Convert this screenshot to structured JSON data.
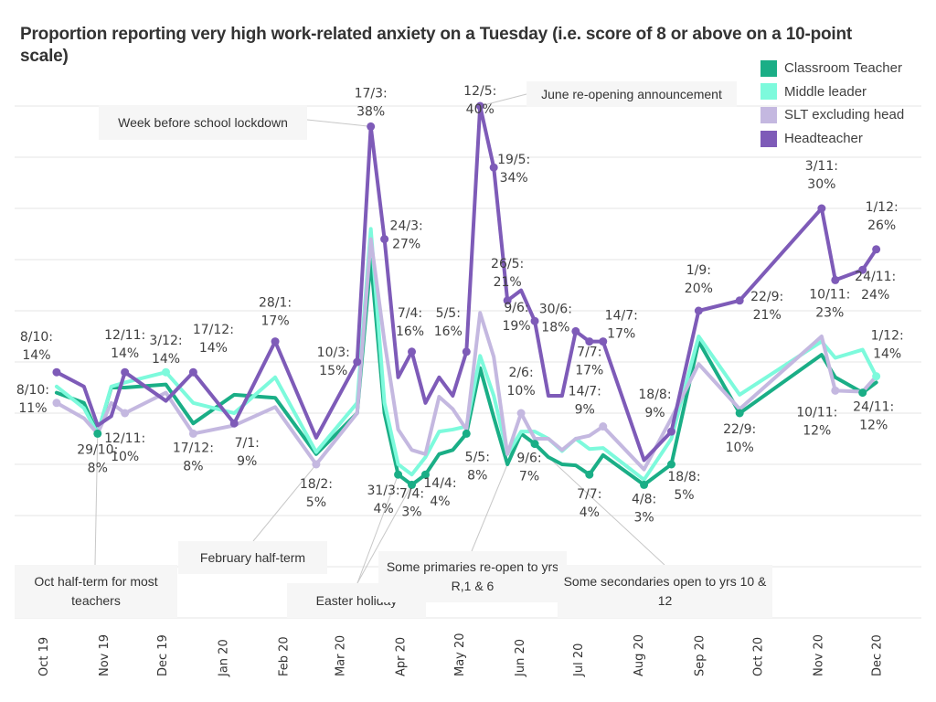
{
  "chart_data": {
    "type": "line",
    "title": "Proportion reporting very high work-related anxiety on a Tuesday (i.e. score of 8 or above on a 10-point scale)",
    "xlabel": "",
    "ylabel": "",
    "ylim": [
      -10,
      40
    ],
    "y_unit": "%",
    "grid": true,
    "legend_position": "top-right",
    "x_ticks": [
      "Oct 19",
      "Nov 19",
      "Dec 19",
      "Jan 20",
      "Feb 20",
      "Mar 20",
      "Apr 20",
      "May 20",
      "Jun 20",
      "Jul 20",
      "Aug 20",
      "Sep 20",
      "Oct 20",
      "Nov 20",
      "Dec 20"
    ],
    "x": [
      "2019-10-08",
      "2019-10-22",
      "2019-10-29",
      "2019-11-05",
      "2019-11-12",
      "2019-12-03",
      "2019-12-17",
      "2020-01-07",
      "2020-01-28",
      "2020-02-18",
      "2020-03-10",
      "2020-03-17",
      "2020-03-24",
      "2020-03-31",
      "2020-04-07",
      "2020-04-14",
      "2020-04-21",
      "2020-04-28",
      "2020-05-05",
      "2020-05-12",
      "2020-05-19",
      "2020-05-26",
      "2020-06-02",
      "2020-06-09",
      "2020-06-16",
      "2020-06-23",
      "2020-06-30",
      "2020-07-07",
      "2020-07-14",
      "2020-08-04",
      "2020-08-18",
      "2020-09-01",
      "2020-09-22",
      "2020-11-03",
      "2020-11-10",
      "2020-11-24",
      "2020-12-01"
    ],
    "series": [
      {
        "name": "Classroom Teacher",
        "color": "#1aae86",
        "values": [
          12,
          11,
          8,
          12.5,
          12.5,
          12.8,
          9,
          11.8,
          11.5,
          6,
          10,
          25,
          10,
          4,
          3,
          4,
          6,
          6.4,
          8,
          14.4,
          9.6,
          5,
          8,
          7,
          5.7,
          5,
          4.9,
          4,
          5.9,
          3,
          5,
          17,
          10,
          15.7,
          13.5,
          12,
          13
        ]
      },
      {
        "name": "Middle leader",
        "color": "#7dfadc",
        "values": [
          12.6,
          10.5,
          8,
          12.6,
          13,
          14,
          11,
          10,
          13.5,
          6.2,
          11,
          28,
          11,
          5,
          4,
          5.7,
          8.2,
          8.4,
          8.7,
          15.6,
          11.7,
          6,
          8.2,
          8.2,
          7.5,
          6.3,
          7.5,
          6.5,
          6.6,
          3.5,
          7.5,
          17.5,
          11.8,
          17,
          15.4,
          16.2,
          13.6
        ]
      },
      {
        "name": "SLT excluding head",
        "color": "#c4b8e0",
        "values": [
          11,
          9.5,
          8,
          11,
          10,
          12,
          8,
          8.8,
          10.6,
          5,
          10,
          27,
          17,
          8.4,
          6.4,
          6,
          11.6,
          10.4,
          8.4,
          19.8,
          15.5,
          6,
          10,
          7.5,
          7.5,
          6.4,
          7.5,
          7.8,
          8.7,
          4.5,
          9.5,
          14.8,
          10.4,
          17.5,
          12.2,
          12.1,
          13.6
        ]
      },
      {
        "name": "Headteacher",
        "color": "#7e5bb8",
        "values": [
          14,
          12.6,
          8.8,
          9.7,
          14,
          11.2,
          14,
          9,
          17,
          7.6,
          15,
          38,
          27,
          13.5,
          16,
          11,
          13.5,
          11.7,
          16,
          40,
          34,
          21,
          22,
          19,
          11.7,
          11.7,
          18,
          17,
          17,
          5.4,
          8.2,
          20,
          21,
          30,
          23,
          24,
          26
        ]
      }
    ],
    "point_labels": [
      {
        "text": [
          "8/10:",
          "14%"
        ],
        "series": "Headteacher",
        "date": "2019-10-08",
        "pos": "above-left"
      },
      {
        "text": [
          "8/10:",
          "11%"
        ],
        "series": "SLT excluding head",
        "date": "2019-10-08",
        "pos": "left"
      },
      {
        "text": [
          "29/10:",
          "8%"
        ],
        "series": "Classroom Teacher",
        "date": "2019-10-29",
        "pos": "below"
      },
      {
        "text": [
          "12/11:",
          "14%"
        ],
        "series": "Headteacher",
        "date": "2019-11-12",
        "pos": "above"
      },
      {
        "text": [
          "12/11:",
          "10%"
        ],
        "series": "SLT excluding head",
        "date": "2019-11-12",
        "pos": "below"
      },
      {
        "text": [
          "3/12:",
          "14%"
        ],
        "series": "Middle leader",
        "date": "2019-12-03",
        "pos": "above"
      },
      {
        "text": [
          "17/12:",
          "14%"
        ],
        "series": "Headteacher",
        "date": "2019-12-17",
        "pos": "above"
      },
      {
        "text": [
          "17/12:",
          "8%"
        ],
        "series": "SLT excluding head",
        "date": "2019-12-17",
        "pos": "below"
      },
      {
        "text": [
          "7/1:",
          "9%"
        ],
        "series": "Headteacher",
        "date": "2020-01-07",
        "pos": "below"
      },
      {
        "text": [
          "28/1:",
          "17%"
        ],
        "series": "Headteacher",
        "date": "2020-01-28",
        "pos": "above"
      },
      {
        "text": [
          "18/2:",
          "5%"
        ],
        "series": "SLT excluding head",
        "date": "2020-02-18",
        "pos": "below"
      },
      {
        "text": [
          "10/3:",
          "15%"
        ],
        "series": "Headteacher",
        "date": "2020-03-10",
        "pos": "left"
      },
      {
        "text": [
          "17/3:",
          "38%"
        ],
        "series": "Headteacher",
        "date": "2020-03-17",
        "pos": "above"
      },
      {
        "text": [
          "24/3:",
          "27%"
        ],
        "series": "Headteacher",
        "date": "2020-03-24",
        "pos": "right"
      },
      {
        "text": [
          "31/3:",
          "4%"
        ],
        "series": "Classroom Teacher",
        "date": "2020-03-31",
        "pos": "below"
      },
      {
        "text": [
          "7/4:",
          "16%"
        ],
        "series": "Headteacher",
        "date": "2020-04-07",
        "pos": "above"
      },
      {
        "text": [
          "7/4:",
          "3%"
        ],
        "series": "Classroom Teacher",
        "date": "2020-04-07",
        "pos": "below"
      },
      {
        "text": [
          "14/4:",
          "4%"
        ],
        "series": "Classroom Teacher",
        "date": "2020-04-14",
        "pos": "below"
      },
      {
        "text": [
          "5/5:",
          "16%"
        ],
        "series": "Headteacher",
        "date": "2020-05-05",
        "pos": "above"
      },
      {
        "text": [
          "5/5:",
          "8%"
        ],
        "series": "Classroom Teacher",
        "date": "2020-05-05",
        "pos": "below"
      },
      {
        "text": [
          "12/5:",
          "40%"
        ],
        "series": "Headteacher",
        "date": "2020-05-12",
        "pos": "left"
      },
      {
        "text": [
          "19/5:",
          "34%"
        ],
        "series": "Headteacher",
        "date": "2020-05-19",
        "pos": "right"
      },
      {
        "text": [
          "26/5:",
          "21%"
        ],
        "series": "Headteacher",
        "date": "2020-05-26",
        "pos": "above"
      },
      {
        "text": [
          "9/6:",
          "19%"
        ],
        "series": "Headteacher",
        "date": "2020-06-09",
        "pos": "left"
      },
      {
        "text": [
          "2/6:",
          "10%"
        ],
        "series": "SLT excluding head",
        "date": "2020-06-02",
        "pos": "above"
      },
      {
        "text": [
          "9/6:",
          "7%"
        ],
        "series": "Classroom Teacher",
        "date": "2020-06-09",
        "pos": "below"
      },
      {
        "text": [
          "30/6:",
          "18%"
        ],
        "series": "Headteacher",
        "date": "2020-06-30",
        "pos": "above"
      },
      {
        "text": [
          "7/7:",
          "17%"
        ],
        "series": "Headteacher",
        "date": "2020-07-07",
        "pos": "below"
      },
      {
        "text": [
          "14/7:",
          "17%"
        ],
        "series": "Headteacher",
        "date": "2020-07-14",
        "pos": "above"
      },
      {
        "text": [
          "14/7:",
          "9%"
        ],
        "series": "SLT excluding head",
        "date": "2020-07-14",
        "pos": "above"
      },
      {
        "text": [
          "7/7:",
          "4%"
        ],
        "series": "Classroom Teacher",
        "date": "2020-07-07",
        "pos": "below"
      },
      {
        "text": [
          "4/8:",
          "3%"
        ],
        "series": "Classroom Teacher",
        "date": "2020-08-04",
        "pos": "below"
      },
      {
        "text": [
          "18/8:",
          "9%"
        ],
        "series": "Headteacher",
        "date": "2020-08-18",
        "pos": "above"
      },
      {
        "text": [
          "18/8:",
          "5%"
        ],
        "series": "Classroom Teacher",
        "date": "2020-08-18",
        "pos": "below"
      },
      {
        "text": [
          "1/9:",
          "20%"
        ],
        "series": "Headteacher",
        "date": "2020-09-01",
        "pos": "above"
      },
      {
        "text": [
          "22/9:",
          "21%"
        ],
        "series": "Headteacher",
        "date": "2020-09-22",
        "pos": "below"
      },
      {
        "text": [
          "22/9:",
          "10%"
        ],
        "series": "Classroom Teacher",
        "date": "2020-09-22",
        "pos": "below"
      },
      {
        "text": [
          "3/11:",
          "30%"
        ],
        "series": "Headteacher",
        "date": "2020-11-03",
        "pos": "above"
      },
      {
        "text": [
          "10/11:",
          "23%"
        ],
        "series": "Headteacher",
        "date": "2020-11-10",
        "pos": "below"
      },
      {
        "text": [
          "24/11:",
          "24%"
        ],
        "series": "Headteacher",
        "date": "2020-11-24",
        "pos": "below"
      },
      {
        "text": [
          "1/12:",
          "26%"
        ],
        "series": "Headteacher",
        "date": "2020-12-01",
        "pos": "above"
      },
      {
        "text": [
          "10/11:",
          "12%"
        ],
        "series": "SLT excluding head",
        "date": "2020-11-10",
        "pos": "below"
      },
      {
        "text": [
          "24/11:",
          "12%"
        ],
        "series": "Classroom Teacher",
        "date": "2020-11-24",
        "pos": "below"
      },
      {
        "text": [
          "1/12:",
          "14%"
        ],
        "series": "Middle leader",
        "date": "2020-12-01",
        "pos": "above"
      }
    ],
    "annotations": [
      {
        "text": "Week before school lockdown",
        "target_date": "2020-03-17",
        "target_series": "Headteacher"
      },
      {
        "text": "June re-opening announcement",
        "target_date": "2020-05-12",
        "target_series": "Headteacher"
      },
      {
        "text": "Oct half-term for most teachers",
        "target_date": "2019-10-29",
        "target_series": "Classroom Teacher"
      },
      {
        "text": "February half-term",
        "target_date": "2020-02-18",
        "target_series": "SLT excluding head"
      },
      {
        "text": "Easter holiday",
        "target_date": [
          "2020-03-31",
          "2020-04-07"
        ],
        "target_series": "Classroom Teacher"
      },
      {
        "text": "Some primaries re-open to yrs R,1 & 6",
        "target_date": "2020-05-26",
        "target_series": "Classroom Teacher"
      },
      {
        "text": "Some secondaries open to yrs 10 & 12",
        "target_date": "2020-06-16",
        "target_series": "Classroom Teacher"
      }
    ]
  }
}
